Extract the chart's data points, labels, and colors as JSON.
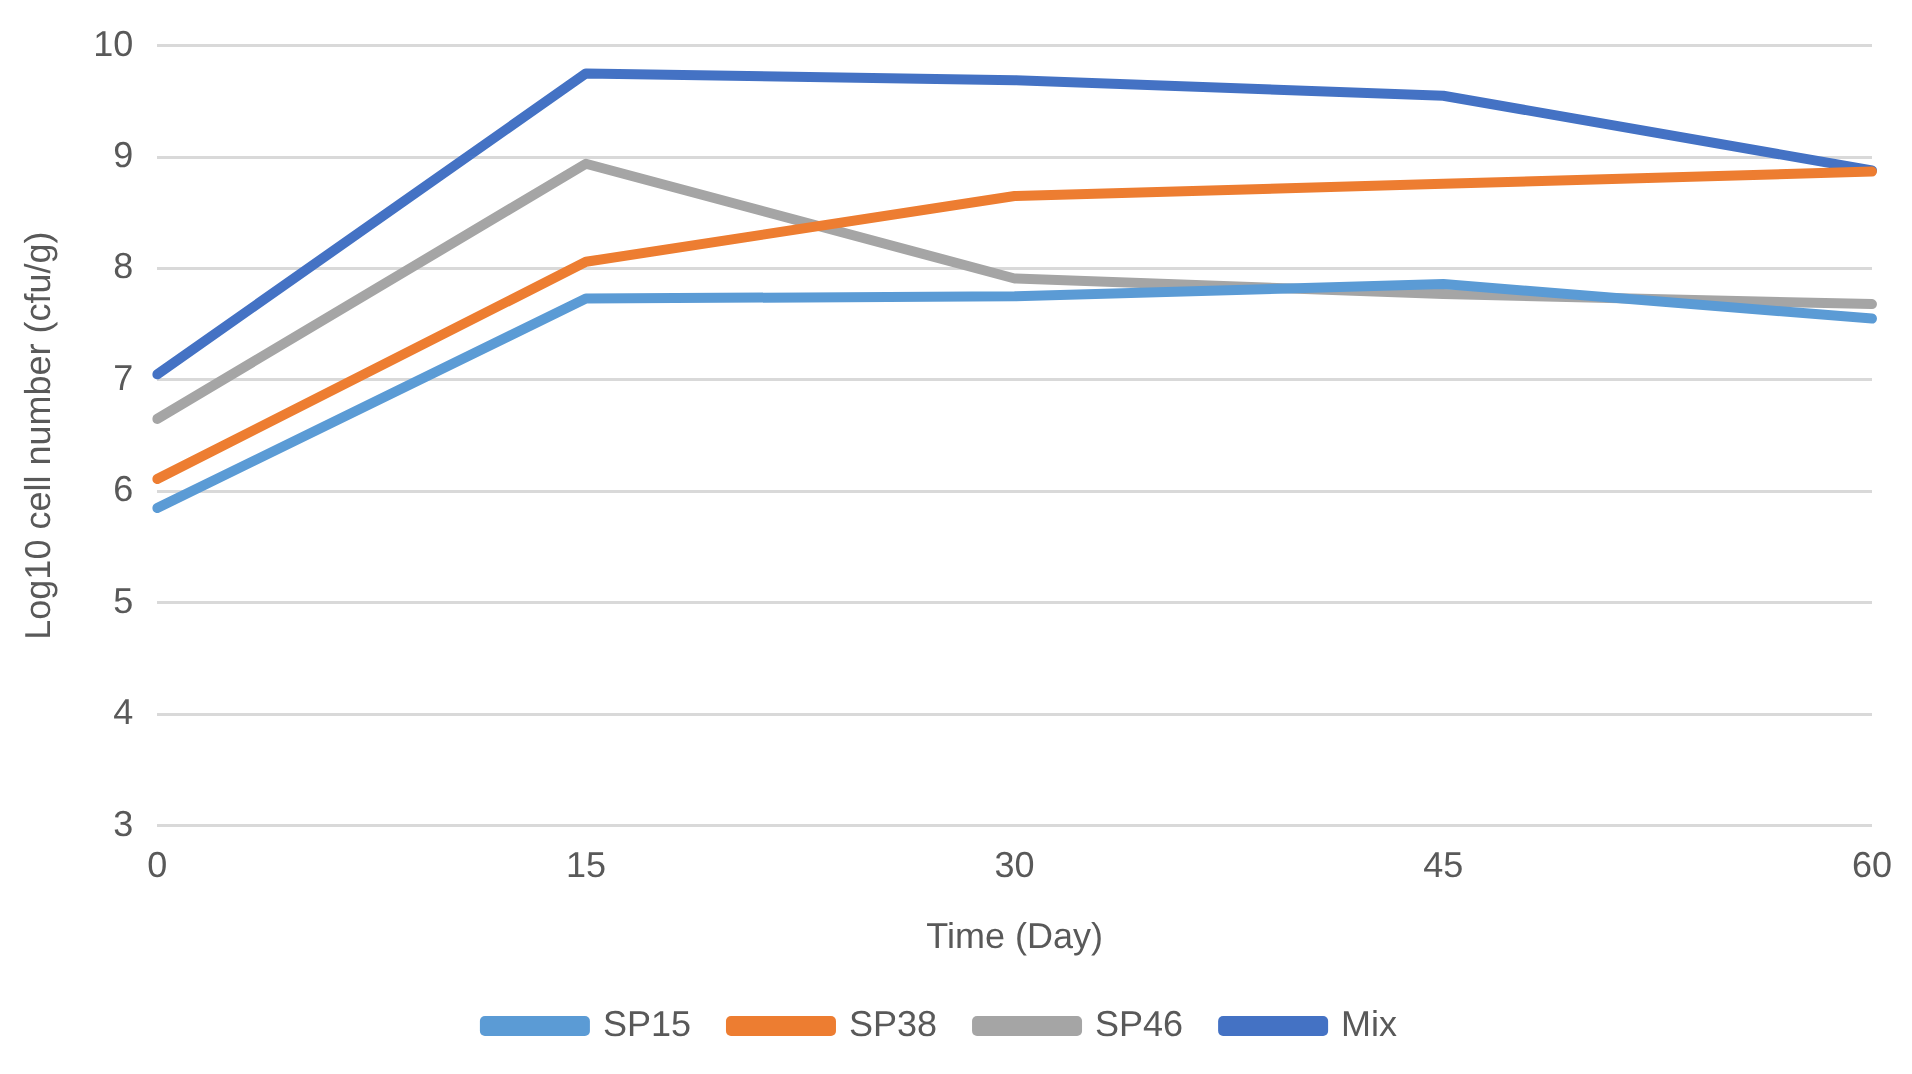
{
  "chart_data": {
    "type": "line",
    "xlabel": "Time (Day)",
    "ylabel": "Log10 cell number (cfu/g)",
    "categories": [
      "0",
      "15",
      "30",
      "45",
      "60"
    ],
    "series": [
      {
        "name": "SP15",
        "color": "#5b9bd5",
        "values": [
          5.85,
          7.73,
          7.75,
          7.86,
          7.55
        ]
      },
      {
        "name": "SP38",
        "color": "#ed7d31",
        "values": [
          6.11,
          8.06,
          8.65,
          8.76,
          8.87
        ]
      },
      {
        "name": "SP46",
        "color": "#a5a5a5",
        "values": [
          6.65,
          8.94,
          7.91,
          7.77,
          7.68
        ]
      },
      {
        "name": "Mix",
        "color": "#4472c4",
        "values": [
          7.05,
          9.75,
          9.69,
          9.55,
          8.88
        ]
      }
    ],
    "ylim": [
      3,
      10
    ],
    "yticks": [
      3,
      4,
      5,
      6,
      7,
      8,
      9,
      10
    ],
    "grid": "y",
    "legend": "bottom",
    "marker": "none",
    "line_style": "solid"
  }
}
